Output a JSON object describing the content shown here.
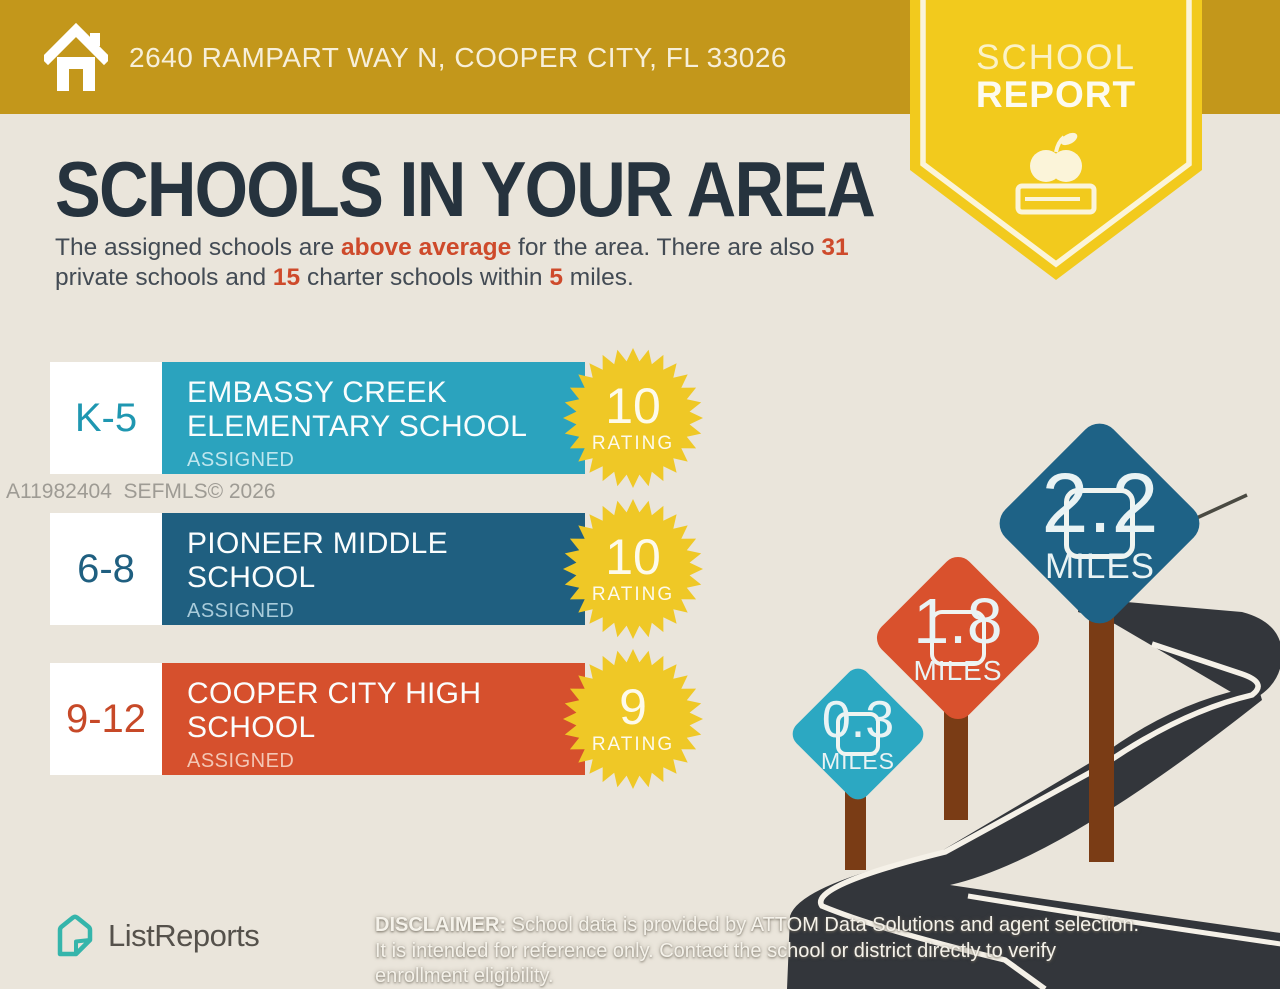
{
  "colors": {
    "background": "#EAE5DB",
    "header_gold": "#C3971B",
    "ribbon_yellow": "#F2CA1D",
    "title_navy": "#26333E",
    "accent_red": "#CE4A2B",
    "badge_gold": "#EFC826",
    "road_dark": "#33363B",
    "post_brown": "#7A3C15"
  },
  "header": {
    "address": "2640 RAMPART WAY N, COOPER CITY, FL 33026"
  },
  "ribbon": {
    "line1": "SCHOOL",
    "line2": "REPORT"
  },
  "main": {
    "title": "SCHOOLS IN YOUR AREA",
    "intro": {
      "seg1": "The assigned schools are ",
      "hl1": "above average",
      "seg2": " for the area. There are also ",
      "hl2": "31",
      "seg3": " private schools and ",
      "hl3": "15",
      "seg4": " charter schools within ",
      "hl4": "5",
      "seg5": " miles."
    }
  },
  "schools": [
    {
      "grades": "K-5",
      "name_line1": "EMBASSY CREEK",
      "name_line2": "ELEMENTARY SCHOOL",
      "status": "ASSIGNED",
      "rating": "10",
      "rating_label": "RATING",
      "bar_color": "#2BA3BE",
      "grade_color": "#1F97B1",
      "status_color": "#BFE6EE"
    },
    {
      "grades": "6-8",
      "name_line1": "PIONEER MIDDLE",
      "name_line2": "SCHOOL",
      "status": "ASSIGNED",
      "rating": "10",
      "rating_label": "RATING",
      "bar_color": "#1F5F80",
      "grade_color": "#1F5F80",
      "status_color": "#A9CCDB"
    },
    {
      "grades": "9-12",
      "name_line1": "COOPER CITY HIGH",
      "name_line2": "SCHOOL",
      "status": "ASSIGNED",
      "rating": "9",
      "rating_label": "RATING",
      "bar_color": "#D6502D",
      "grade_color": "#C74928",
      "status_color": "#F3C7B5"
    }
  ],
  "signs": [
    {
      "value": "0.3",
      "unit": "MILES",
      "color": "#2CA8C2"
    },
    {
      "value": "1.8",
      "unit": "MILES",
      "color": "#D9512D"
    },
    {
      "value": "2.2",
      "unit": "MILES",
      "color": "#1E6286"
    }
  ],
  "watermark": "A11982404  SEFMLS© 2026",
  "footer": {
    "brand": "ListReports",
    "disclaimer_bold": "DISCLAIMER:",
    "disclaimer_rest": " School data is provided by ATTOM Data Solutions and agent selection. It is intended for reference only. Contact the school or district directly to verify enrollment eligibility."
  }
}
